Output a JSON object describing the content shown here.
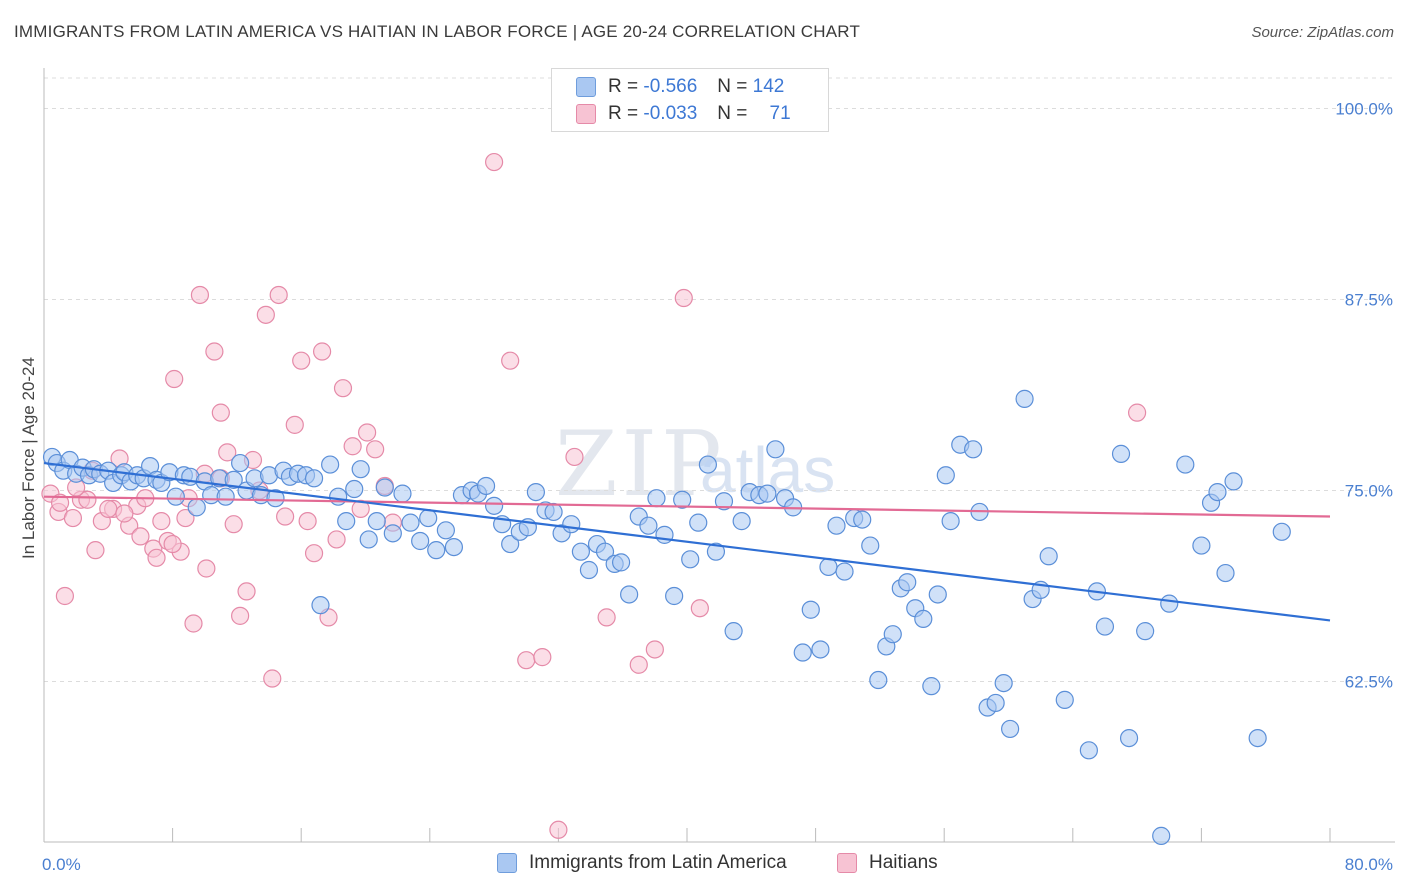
{
  "title": "IMMIGRANTS FROM LATIN AMERICA VS HAITIAN IN LABOR FORCE | AGE 20-24 CORRELATION CHART",
  "source": "Source: ZipAtlas.com",
  "watermark": {
    "zip": "ZIP",
    "atlas": "atlas"
  },
  "legend_top": [
    {
      "r_label": "R =",
      "r_value": "-0.566",
      "n_label": "N =",
      "n_value": "142"
    },
    {
      "r_label": "R =",
      "r_value": "-0.033",
      "n_label": "N =",
      "n_value": "71"
    }
  ],
  "chart_data": {
    "type": "scatter",
    "ylabel": "In Labor Force | Age 20-24",
    "x_tick_labels": [
      "0.0%",
      "80.0%"
    ],
    "y_tick_labels": [
      "100.0%",
      "87.5%",
      "75.0%",
      "62.5%"
    ],
    "xlim": [
      0,
      80
    ],
    "ylim": [
      52,
      102
    ],
    "y_ticks": [
      100,
      87.5,
      75,
      62.5
    ],
    "grid": true,
    "legend_position": "bottom",
    "colors": {
      "blue_fill": "#aac8f2",
      "blue_stroke": "#5b8fd8",
      "blue_line": "#2f6fd4",
      "pink_fill": "#f7c3d3",
      "pink_stroke": "#e58aa8",
      "pink_line": "#e26a94"
    },
    "series": [
      {
        "name": "Immigrants from Latin America",
        "trend": {
          "x": [
            0,
            80
          ],
          "y": [
            76.8,
            66.5
          ]
        },
        "points": [
          [
            0.5,
            77.2
          ],
          [
            0.8,
            76.8
          ],
          [
            1.2,
            76.3
          ],
          [
            1.6,
            77.0
          ],
          [
            2.0,
            76.1
          ],
          [
            2.4,
            76.5
          ],
          [
            2.8,
            76.0
          ],
          [
            3.1,
            76.4
          ],
          [
            3.5,
            76.1
          ],
          [
            4.0,
            76.3
          ],
          [
            4.3,
            75.5
          ],
          [
            4.8,
            76.0
          ],
          [
            5.0,
            76.2
          ],
          [
            5.4,
            75.6
          ],
          [
            5.8,
            76.0
          ],
          [
            6.2,
            75.8
          ],
          [
            6.6,
            76.6
          ],
          [
            7.0,
            75.7
          ],
          [
            7.3,
            75.5
          ],
          [
            7.8,
            76.2
          ],
          [
            8.2,
            74.6
          ],
          [
            8.7,
            76.0
          ],
          [
            9.1,
            75.9
          ],
          [
            9.5,
            73.9
          ],
          [
            10.0,
            75.6
          ],
          [
            10.4,
            74.7
          ],
          [
            10.9,
            75.8
          ],
          [
            11.3,
            74.6
          ],
          [
            11.8,
            75.7
          ],
          [
            12.2,
            76.8
          ],
          [
            12.6,
            75.0
          ],
          [
            13.1,
            75.8
          ],
          [
            13.5,
            74.7
          ],
          [
            14.0,
            76.0
          ],
          [
            14.4,
            74.5
          ],
          [
            14.9,
            76.3
          ],
          [
            15.3,
            75.9
          ],
          [
            15.8,
            76.1
          ],
          [
            16.3,
            76.0
          ],
          [
            16.8,
            75.8
          ],
          [
            17.2,
            67.5
          ],
          [
            17.8,
            76.7
          ],
          [
            18.3,
            74.6
          ],
          [
            18.8,
            73.0
          ],
          [
            19.3,
            75.1
          ],
          [
            19.7,
            76.4
          ],
          [
            20.2,
            71.8
          ],
          [
            20.7,
            73.0
          ],
          [
            21.2,
            75.2
          ],
          [
            21.7,
            72.2
          ],
          [
            22.3,
            74.8
          ],
          [
            22.8,
            72.9
          ],
          [
            23.4,
            71.7
          ],
          [
            23.9,
            73.2
          ],
          [
            24.4,
            71.1
          ],
          [
            25.0,
            72.4
          ],
          [
            25.5,
            71.3
          ],
          [
            26.0,
            74.7
          ],
          [
            26.6,
            75.0
          ],
          [
            27.0,
            74.8
          ],
          [
            27.5,
            75.3
          ],
          [
            28.0,
            74.0
          ],
          [
            28.5,
            72.8
          ],
          [
            29.0,
            71.5
          ],
          [
            29.6,
            72.3
          ],
          [
            30.1,
            72.6
          ],
          [
            30.6,
            74.9
          ],
          [
            31.2,
            73.7
          ],
          [
            31.7,
            73.6
          ],
          [
            32.2,
            72.2
          ],
          [
            32.8,
            72.8
          ],
          [
            33.4,
            71.0
          ],
          [
            33.9,
            69.8
          ],
          [
            34.4,
            71.5
          ],
          [
            34.9,
            71.0
          ],
          [
            35.5,
            70.2
          ],
          [
            35.9,
            70.3
          ],
          [
            36.4,
            68.2
          ],
          [
            37.0,
            73.3
          ],
          [
            37.6,
            72.7
          ],
          [
            38.1,
            74.5
          ],
          [
            38.6,
            72.1
          ],
          [
            39.2,
            68.1
          ],
          [
            39.7,
            74.4
          ],
          [
            40.2,
            70.5
          ],
          [
            40.7,
            72.9
          ],
          [
            41.3,
            76.7
          ],
          [
            41.8,
            71.0
          ],
          [
            42.3,
            74.3
          ],
          [
            42.9,
            65.8
          ],
          [
            43.4,
            73.0
          ],
          [
            43.9,
            74.9
          ],
          [
            44.5,
            74.7
          ],
          [
            45.0,
            74.8
          ],
          [
            45.5,
            77.7
          ],
          [
            46.1,
            74.5
          ],
          [
            46.6,
            73.9
          ],
          [
            47.2,
            64.4
          ],
          [
            47.7,
            67.2
          ],
          [
            48.3,
            64.6
          ],
          [
            48.8,
            70.0
          ],
          [
            49.3,
            72.7
          ],
          [
            49.8,
            69.7
          ],
          [
            50.4,
            73.2
          ],
          [
            50.9,
            73.1
          ],
          [
            51.4,
            71.4
          ],
          [
            51.9,
            62.6
          ],
          [
            52.4,
            64.8
          ],
          [
            52.8,
            65.6
          ],
          [
            53.3,
            68.6
          ],
          [
            53.7,
            69.0
          ],
          [
            54.2,
            67.3
          ],
          [
            54.7,
            66.6
          ],
          [
            55.2,
            62.2
          ],
          [
            55.6,
            68.2
          ],
          [
            56.1,
            76.0
          ],
          [
            56.4,
            73.0
          ],
          [
            57.0,
            78.0
          ],
          [
            57.8,
            77.7
          ],
          [
            58.2,
            73.6
          ],
          [
            58.7,
            60.8
          ],
          [
            59.2,
            61.1
          ],
          [
            59.7,
            62.4
          ],
          [
            60.1,
            59.4
          ],
          [
            61.0,
            81.0
          ],
          [
            61.5,
            67.9
          ],
          [
            62.0,
            68.5
          ],
          [
            62.5,
            70.7
          ],
          [
            63.5,
            61.3
          ],
          [
            65.0,
            58.0
          ],
          [
            65.5,
            68.4
          ],
          [
            66.0,
            66.1
          ],
          [
            67.0,
            77.4
          ],
          [
            67.5,
            58.8
          ],
          [
            68.5,
            65.8
          ],
          [
            69.5,
            52.4
          ],
          [
            70.0,
            67.6
          ],
          [
            71.0,
            76.7
          ],
          [
            72.0,
            71.4
          ],
          [
            72.6,
            74.2
          ],
          [
            73.0,
            74.9
          ],
          [
            73.5,
            69.6
          ],
          [
            74.0,
            75.6
          ],
          [
            75.5,
            58.8
          ],
          [
            77.0,
            72.3
          ]
        ]
      },
      {
        "name": "Haitians",
        "trend": {
          "x": [
            0,
            80
          ],
          "y": [
            74.6,
            73.3
          ]
        },
        "points": [
          [
            0.4,
            74.8
          ],
          [
            0.9,
            73.6
          ],
          [
            1.3,
            68.1
          ],
          [
            1.8,
            73.2
          ],
          [
            2.3,
            74.4
          ],
          [
            2.7,
            74.4
          ],
          [
            3.2,
            71.1
          ],
          [
            3.6,
            73.0
          ],
          [
            4.3,
            73.8
          ],
          [
            4.7,
            77.1
          ],
          [
            5.3,
            72.7
          ],
          [
            5.8,
            74.0
          ],
          [
            6.3,
            74.5
          ],
          [
            6.8,
            71.2
          ],
          [
            7.3,
            73.0
          ],
          [
            7.7,
            71.7
          ],
          [
            8.1,
            82.3
          ],
          [
            8.5,
            71.0
          ],
          [
            8.8,
            73.2
          ],
          [
            9.3,
            66.3
          ],
          [
            9.7,
            87.8
          ],
          [
            10.1,
            69.9
          ],
          [
            10.6,
            84.1
          ],
          [
            11.0,
            80.1
          ],
          [
            11.4,
            77.5
          ],
          [
            11.8,
            72.8
          ],
          [
            12.2,
            66.8
          ],
          [
            12.6,
            68.4
          ],
          [
            13.0,
            77.0
          ],
          [
            13.4,
            75.0
          ],
          [
            13.8,
            86.5
          ],
          [
            14.2,
            62.7
          ],
          [
            14.6,
            87.8
          ],
          [
            15.0,
            73.3
          ],
          [
            15.6,
            79.3
          ],
          [
            16.0,
            83.5
          ],
          [
            16.4,
            73.0
          ],
          [
            16.8,
            70.9
          ],
          [
            17.3,
            84.1
          ],
          [
            17.7,
            66.7
          ],
          [
            18.2,
            71.8
          ],
          [
            18.6,
            81.7
          ],
          [
            19.2,
            77.9
          ],
          [
            19.7,
            73.8
          ],
          [
            20.1,
            78.8
          ],
          [
            20.6,
            77.7
          ],
          [
            21.2,
            75.3
          ],
          [
            21.7,
            72.9
          ],
          [
            28.0,
            96.5
          ],
          [
            29.0,
            83.5
          ],
          [
            30.0,
            63.9
          ],
          [
            31.0,
            64.1
          ],
          [
            32.0,
            52.8
          ],
          [
            33.0,
            77.2
          ],
          [
            35.0,
            66.7
          ],
          [
            37.0,
            63.6
          ],
          [
            38.0,
            64.6
          ],
          [
            39.8,
            87.6
          ],
          [
            40.8,
            67.3
          ],
          [
            68.0,
            80.1
          ],
          [
            1.0,
            74.2
          ],
          [
            2.0,
            75.2
          ],
          [
            3.0,
            76.3
          ],
          [
            4.0,
            73.8
          ],
          [
            5.0,
            73.5
          ],
          [
            6.0,
            72.0
          ],
          [
            7.0,
            70.6
          ],
          [
            8.0,
            71.5
          ],
          [
            9.0,
            74.5
          ],
          [
            10.0,
            76.1
          ],
          [
            11.0,
            75.8
          ]
        ]
      }
    ]
  },
  "bottom_legend": [
    {
      "label": "Immigrants from Latin America"
    },
    {
      "label": "Haitians"
    }
  ]
}
